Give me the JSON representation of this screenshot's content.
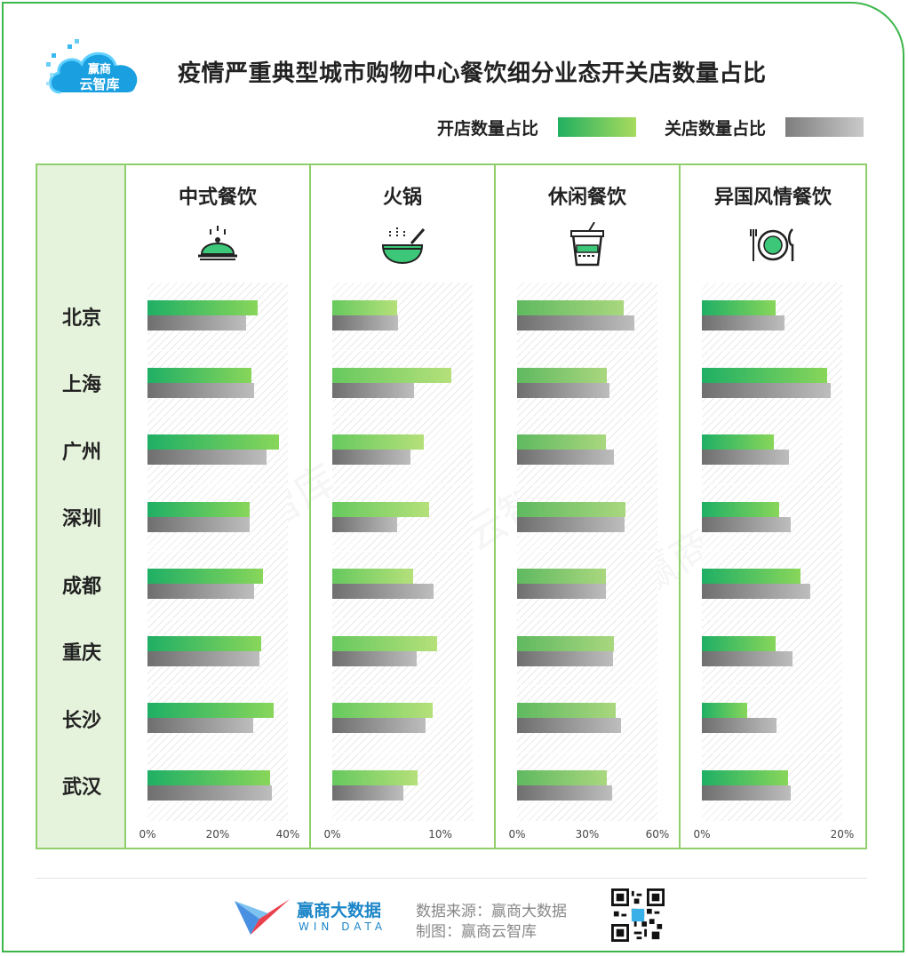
{
  "header": {
    "logo_text": "赢商云智库",
    "title": "疫情严重典型城市购物中心餐饮细分业态开关店数量占比"
  },
  "legend": {
    "open_label": "开店数量占比",
    "close_label": "关店数量占比"
  },
  "colors": {
    "open": "#22b061",
    "close": "#8a8a8a",
    "border": "#8fcf6b"
  },
  "footer": {
    "brand_cn": "赢商大数据",
    "brand_en": "WIN DATA",
    "source": "数据来源：赢商大数据",
    "made_by": "制图：赢商云智库"
  },
  "chart_data": {
    "type": "bar",
    "orientation": "horizontal",
    "categories": [
      "北京",
      "上海",
      "广州",
      "深圳",
      "成都",
      "重庆",
      "长沙",
      "武汉"
    ],
    "panels": [
      {
        "name": "中式餐饮",
        "icon": "food-cloche-icon",
        "xlim": [
          0,
          40
        ],
        "ticks": [
          "0%",
          "20%",
          "40%"
        ],
        "series": [
          {
            "name": "开店数量占比",
            "values": [
              31.5,
              29.5,
              37.5,
              29,
              33,
              32.5,
              36,
              35
            ]
          },
          {
            "name": "关店数量占比",
            "values": [
              28,
              30.5,
              34,
              29,
              30.5,
              32,
              30,
              35.5
            ]
          }
        ]
      },
      {
        "name": "火锅",
        "icon": "hotpot-bowl-icon",
        "xlim": [
          0,
          13
        ],
        "ticks": [
          "0%",
          "10%"
        ],
        "series": [
          {
            "name": "开店数量占比",
            "values": [
              6,
              11,
              8.5,
              9,
              7.5,
              9.7,
              9.3,
              7.9
            ]
          },
          {
            "name": "关店数量占比",
            "values": [
              6.1,
              7.6,
              7.2,
              6,
              9.4,
              7.8,
              8.6,
              6.6
            ]
          }
        ]
      },
      {
        "name": "休闲餐饮",
        "icon": "drink-cup-icon",
        "xlim": [
          0,
          60
        ],
        "ticks": [
          "0%",
          "30%",
          "60%"
        ],
        "series": [
          {
            "name": "开店数量占比",
            "values": [
              45.5,
              38.5,
              38,
              46.5,
              38,
              41.5,
              42,
              38.5
            ]
          },
          {
            "name": "关店数量占比",
            "values": [
              50,
              39.5,
              41.5,
              46,
              38,
              41,
              44.5,
              40.5
            ]
          }
        ]
      },
      {
        "name": "异国风情餐饮",
        "icon": "plate-cutlery-icon",
        "xlim": [
          0,
          20
        ],
        "ticks": [
          "0%",
          "20%"
        ],
        "series": [
          {
            "name": "开店数量占比",
            "values": [
              10.5,
              17.8,
              10.3,
              11,
              14,
              10.5,
              6.5,
              12.3
            ]
          },
          {
            "name": "关店数量占比",
            "values": [
              11.8,
              18.3,
              12.4,
              12.7,
              15.5,
              12.9,
              10.6,
              12.7
            ]
          }
        ]
      }
    ]
  }
}
